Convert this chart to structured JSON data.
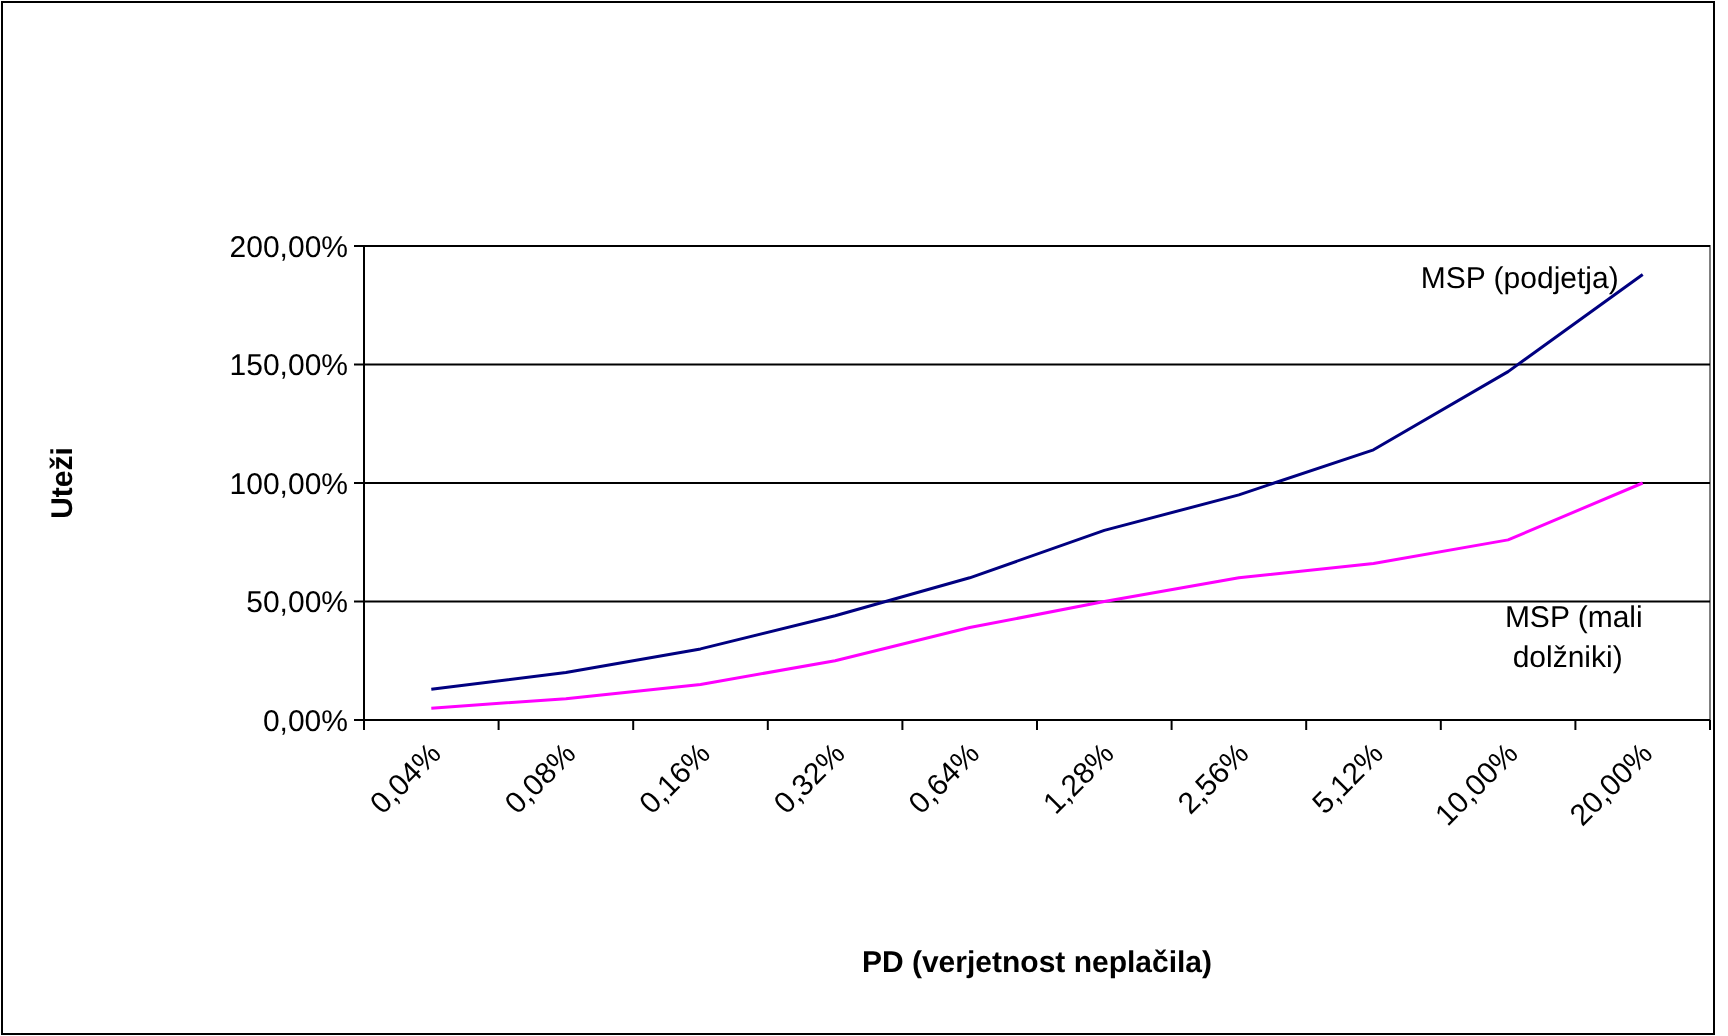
{
  "chart_data": {
    "type": "line",
    "xlabel": "PD (verjetnost neplačila)",
    "ylabel": "Uteži",
    "categories": [
      "0,04%",
      "0,08%",
      "0,16%",
      "0,32%",
      "0,64%",
      "1,28%",
      "2,56%",
      "5,12%",
      "10,00%",
      "20,00%"
    ],
    "series": [
      {
        "name": "MSP (podjetja)",
        "color": "#000080",
        "values": [
          13,
          20,
          30,
          44,
          60,
          80,
          95,
          114,
          147,
          188
        ]
      },
      {
        "name": "MSP (mali dolžniki)",
        "color": "#ff00ff",
        "values": [
          5,
          9,
          15,
          25,
          39,
          50,
          60,
          66,
          76,
          100
        ]
      }
    ],
    "ylim": [
      0,
      200
    ],
    "yticks": [
      {
        "value": 0,
        "label": "0,00%"
      },
      {
        "value": 50,
        "label": "50,00%"
      },
      {
        "value": 100,
        "label": "100,00%"
      },
      {
        "value": 150,
        "label": "150,00%"
      },
      {
        "value": 200,
        "label": "200,00%"
      }
    ],
    "grid": "y",
    "marker": "none",
    "line_style": "solid"
  }
}
